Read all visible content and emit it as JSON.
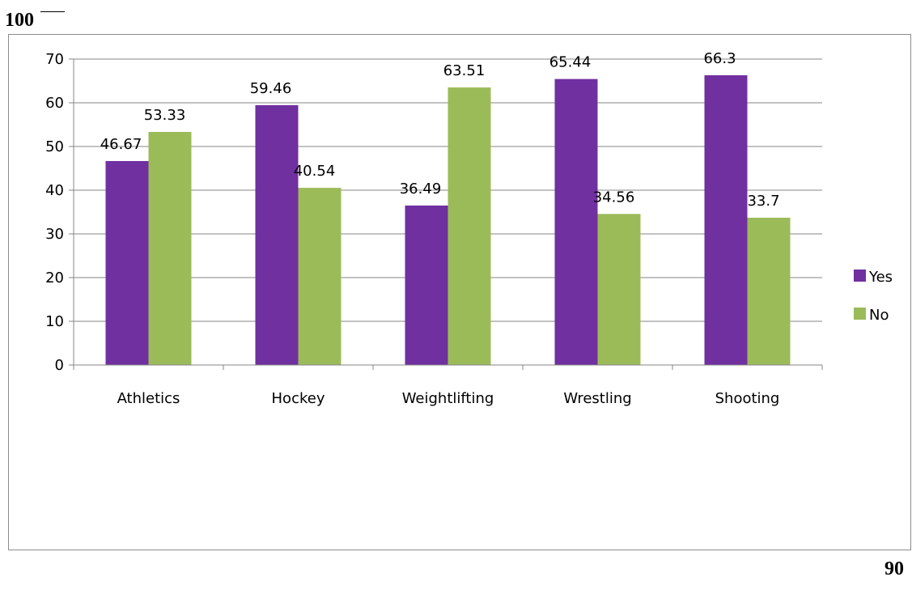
{
  "page_numbers": {
    "top": "100",
    "bottom": "90"
  },
  "chart_data": {
    "type": "bar",
    "categories": [
      "Athletics",
      "Hockey",
      "Weightlifting",
      "Wrestling",
      "Shooting"
    ],
    "series": [
      {
        "name": "Yes",
        "color": "#7030a0",
        "values": [
          46.67,
          59.46,
          36.49,
          65.44,
          66.3
        ]
      },
      {
        "name": "No",
        "color": "#9bbb59",
        "values": [
          53.33,
          40.54,
          63.51,
          34.56,
          33.7
        ]
      }
    ],
    "data_labels": [
      [
        "46.67",
        "59.46",
        "36.49",
        "65.44",
        "66.3"
      ],
      [
        "53.33",
        "40.54",
        "63.51",
        "34.56",
        "33.7"
      ]
    ],
    "yticks": [
      "0",
      "10",
      "20",
      "30",
      "40",
      "50",
      "60",
      "70"
    ],
    "ylim": [
      0,
      70
    ],
    "grid": true,
    "legend": "right"
  }
}
